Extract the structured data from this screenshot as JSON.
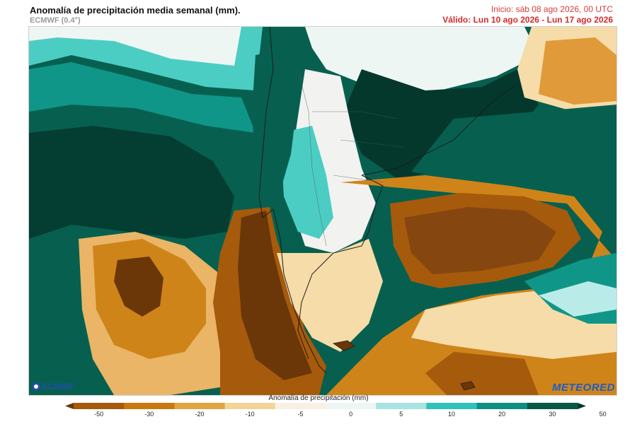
{
  "header": {
    "title": "Anomalía de precipitación media semanal (mm).",
    "model": "ECMWF (0.4°)",
    "init": "Inicio: sáb 08 ago 2026, 00 UTC",
    "valid": "Válido: Lun 10 ago 2026 - Lun 17 ago 2026"
  },
  "logos": {
    "left": "ECMWF",
    "right": "METEORED"
  },
  "colorbar": {
    "title": "Anomalía de precipitación (mm)",
    "ticks": [
      "-50",
      "-30",
      "-20",
      "-10",
      "-5",
      "0",
      "5",
      "10",
      "20",
      "30",
      "50"
    ],
    "colors": [
      "#6b3608",
      "#a65a0c",
      "#c9790f",
      "#e0a540",
      "#f3d497",
      "#f7f1e4",
      "#eef6f4",
      "#a8e3e0",
      "#2fc2bb",
      "#0e8f84",
      "#075848",
      "#04382d"
    ]
  },
  "map_colors": {
    "dry_extreme": "#6b3608",
    "dry_strong": "#a65a0c",
    "dry_moderate": "#cf8419",
    "dry_light": "#eab566",
    "dry_slight": "#f6dca8",
    "neutral": "#f2f2f0",
    "wet_slight": "#b9ece8",
    "wet_light": "#4ccdc3",
    "wet_moderate": "#109688",
    "wet_strong": "#07604f",
    "wet_extreme": "#043d32"
  }
}
